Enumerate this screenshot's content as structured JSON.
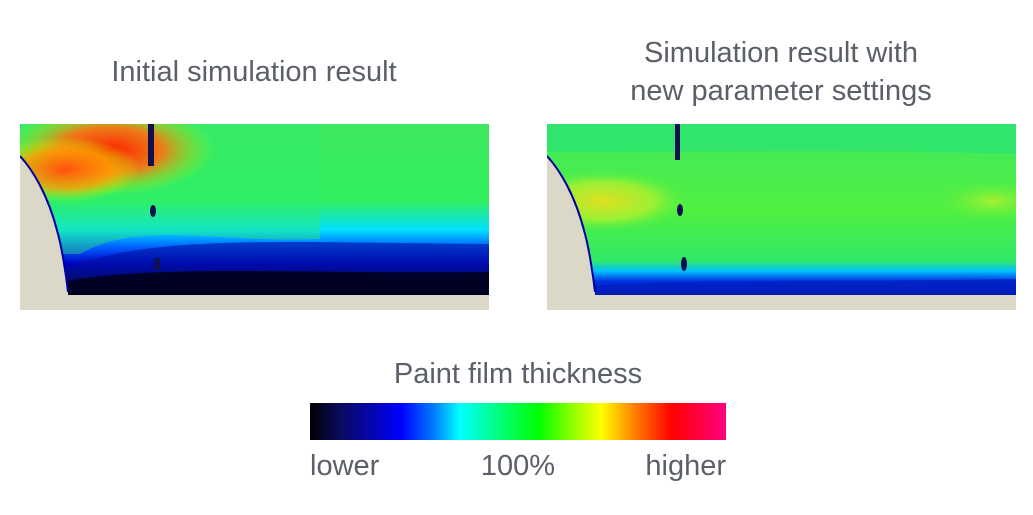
{
  "panels": [
    {
      "title": "Initial simulation result"
    },
    {
      "title": "Simulation result with\nnew parameter settings"
    }
  ],
  "legend": {
    "title": "Paint film thickness",
    "ticks": {
      "low": "lower",
      "mid": "100%",
      "high": "higher"
    },
    "colors": [
      "#000000",
      "#0000ff",
      "#00ffff",
      "#00ff00",
      "#ffff00",
      "#ff0000",
      "#ff0080"
    ]
  }
}
